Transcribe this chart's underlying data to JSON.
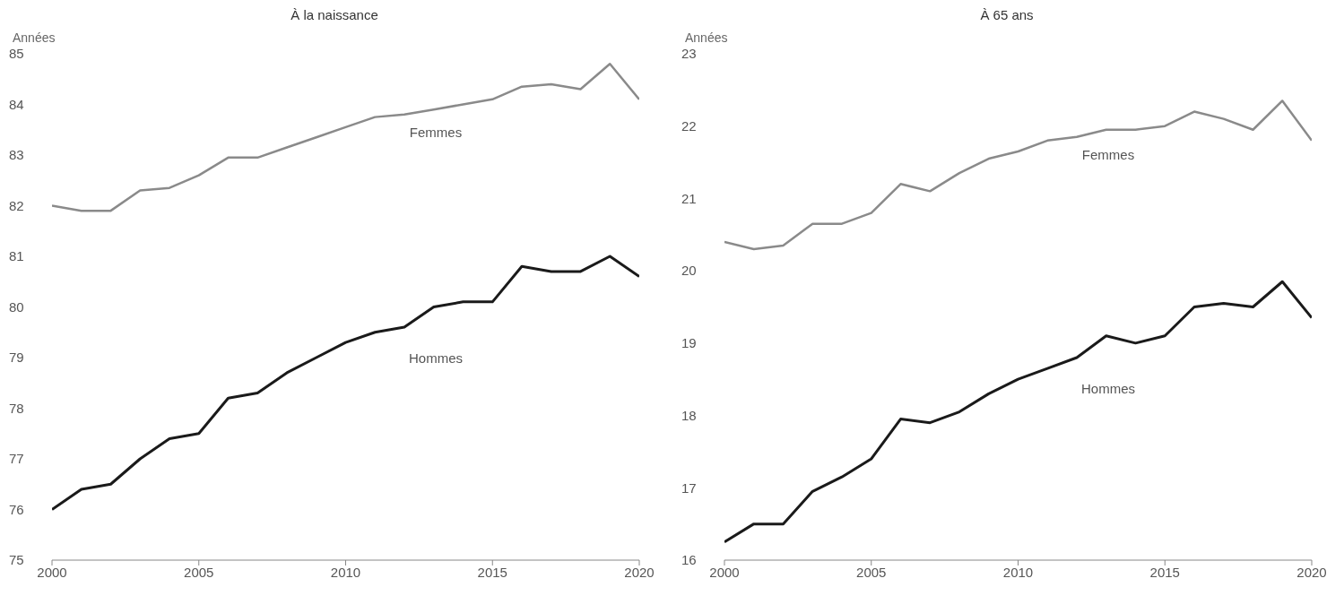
{
  "chart_data": [
    {
      "type": "line",
      "title": "À la naissance",
      "ylabel": "Années",
      "x": [
        2000,
        2001,
        2002,
        2003,
        2004,
        2005,
        2006,
        2007,
        2008,
        2009,
        2010,
        2011,
        2012,
        2013,
        2014,
        2015,
        2016,
        2017,
        2018,
        2019,
        2020
      ],
      "xlim": [
        2000,
        2020
      ],
      "xticks": [
        2000,
        2005,
        2010,
        2015,
        2020
      ],
      "ylim": [
        75,
        85
      ],
      "yticks": [
        75,
        76,
        77,
        78,
        79,
        80,
        81,
        82,
        83,
        84,
        85
      ],
      "grid": false,
      "legend": false,
      "series": [
        {
          "name": "Femmes",
          "color": "#8a8a8a",
          "values": [
            82.0,
            81.9,
            81.9,
            82.3,
            82.35,
            82.6,
            82.95,
            82.95,
            83.15,
            83.35,
            83.55,
            83.75,
            83.8,
            83.9,
            84.0,
            84.1,
            84.35,
            84.4,
            84.3,
            84.8,
            84.1
          ]
        },
        {
          "name": "Hommes",
          "color": "#1a1a1a",
          "values": [
            76.0,
            76.4,
            76.5,
            77.0,
            77.4,
            77.5,
            78.2,
            78.3,
            78.7,
            79.0,
            79.3,
            79.5,
            79.6,
            80.0,
            80.1,
            80.1,
            80.8,
            80.7,
            80.7,
            81.0,
            80.6
          ]
        }
      ]
    },
    {
      "type": "line",
      "title": "À 65 ans",
      "ylabel": "Années",
      "x": [
        2000,
        2001,
        2002,
        2003,
        2004,
        2005,
        2006,
        2007,
        2008,
        2009,
        2010,
        2011,
        2012,
        2013,
        2014,
        2015,
        2016,
        2017,
        2018,
        2019,
        2020
      ],
      "xlim": [
        2000,
        2020
      ],
      "xticks": [
        2000,
        2005,
        2010,
        2015,
        2020
      ],
      "ylim": [
        16,
        23
      ],
      "yticks": [
        16,
        17,
        18,
        19,
        20,
        21,
        22,
        23
      ],
      "grid": false,
      "legend": false,
      "series": [
        {
          "name": "Femmes",
          "color": "#8a8a8a",
          "values": [
            20.4,
            20.3,
            20.35,
            20.65,
            20.65,
            20.8,
            21.2,
            21.1,
            21.35,
            21.55,
            21.65,
            21.8,
            21.85,
            21.95,
            21.95,
            22.0,
            22.2,
            22.1,
            21.95,
            22.35,
            21.8
          ]
        },
        {
          "name": "Hommes",
          "color": "#1a1a1a",
          "values": [
            16.25,
            16.5,
            16.5,
            16.95,
            17.15,
            17.4,
            17.95,
            17.9,
            18.05,
            18.3,
            18.5,
            18.65,
            18.8,
            19.1,
            19.0,
            19.1,
            19.5,
            19.55,
            19.5,
            19.85,
            19.35
          ]
        }
      ]
    }
  ]
}
